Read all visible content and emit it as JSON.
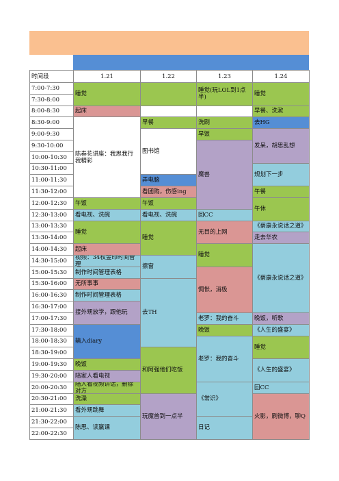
{
  "table": {
    "time_header": "时间段",
    "time_slots": [
      "7:00-7:30",
      "7:30-8:00",
      "8:00-8:30",
      "8:30-9:00",
      "9:00-9:30",
      "9:30-10:00",
      "10:00-10:30",
      "10:30-11:00",
      "11:00-11:30",
      "11:30-12:00",
      "12:00-12:30",
      "12:30-13:00",
      "13:00-13:30",
      "13:30-14:00",
      "14:00-14:30",
      "14:30-15:00",
      "15:00-15:30",
      "15:30-16:00",
      "16:00-16:30",
      "16:30-17:00",
      "17:00-17:30",
      "17:30-18:00",
      "18:00-18:30",
      "18:30-19:00",
      "19:00-19:30",
      "19:30-20:00",
      "20:00-20:30",
      "20:30-21:00",
      "21:00-21:30",
      "21:30-22:00",
      "22:00-22:30"
    ],
    "days": [
      {
        "date": "1.21",
        "cells": [
          {
            "text": "睡觉",
            "span": 2,
            "color": "green"
          },
          {
            "text": "起床",
            "span": 1,
            "color": "pink"
          },
          {
            "text": "陈春花讲座：我思我行我精彩",
            "span": 7,
            "color": "white"
          },
          {
            "text": "午饭",
            "span": 1,
            "color": "green"
          },
          {
            "text": "看电视、洗碗",
            "span": 1,
            "color": "lightblue"
          },
          {
            "text": "睡觉",
            "span": 2,
            "color": "green"
          },
          {
            "text": "起床",
            "span": 1,
            "color": "pink"
          },
          {
            "text": "视频：34权金印时间管理",
            "span": 1,
            "color": "lightblue"
          },
          {
            "text": "制作时间管理表格",
            "span": 1,
            "color": "lightblue"
          },
          {
            "text": "无所事事",
            "span": 1,
            "color": "pink"
          },
          {
            "text": "制作时间管理表格",
            "span": 1,
            "color": "lightblue"
          },
          {
            "text": "接外甥放学，跟他玩",
            "span": 2,
            "color": "purple"
          },
          {
            "text": "输入diary",
            "span": 3,
            "color": "blue"
          },
          {
            "text": "晚饭",
            "span": 1,
            "color": "green"
          },
          {
            "text": "陪家人看电视",
            "span": 1,
            "color": "purple"
          },
          {
            "text": "陪人看视频讲话，删除对方",
            "span": 1,
            "color": "green"
          },
          {
            "text": "洗澡",
            "span": 1,
            "color": "green"
          },
          {
            "text": "看外甥跳舞",
            "span": 1,
            "color": "lightblue"
          },
          {
            "text": "陈思、读赢课",
            "span": 2,
            "color": "lightblue"
          }
        ]
      },
      {
        "date": "1.22",
        "cells": [
          {
            "span": 2,
            "color": "green"
          },
          {
            "span": 1,
            "color": "white"
          },
          {
            "text": "早餐",
            "span": 1,
            "color": "green"
          },
          {
            "text": "图书馆",
            "span": 4,
            "color": "white"
          },
          {
            "text": "弄电脑",
            "span": 1,
            "color": "blue"
          },
          {
            "text": "看团购，伤感ing",
            "span": 1,
            "color": "pink"
          },
          {
            "text": "午饭",
            "span": 1,
            "color": "green"
          },
          {
            "text": "看电视、洗碗",
            "span": 1,
            "color": "lightblue"
          },
          {
            "text": "睡觉",
            "span": 3,
            "color": "green"
          },
          {
            "text": "擦窗",
            "span": 2,
            "color": "lightblue"
          },
          {
            "text": "去TH",
            "span": 6,
            "color": "lightblue"
          },
          {
            "text": "和阿强他们吃饭",
            "span": 4,
            "color": "green"
          },
          {
            "text": "玩魔兽到一点半",
            "span": 4,
            "color": "purple"
          }
        ]
      },
      {
        "date": "1.23",
        "cells": [
          {
            "text": "睡觉(玩LOL到1点半)",
            "span": 2,
            "color": "green"
          },
          {
            "span": 1,
            "color": "white"
          },
          {
            "text": "洗刷",
            "span": 1,
            "color": "green"
          },
          {
            "text": "早饭",
            "span": 1,
            "color": "green"
          },
          {
            "text": "魔兽",
            "span": 6,
            "color": "purple"
          },
          {
            "text": "回CC",
            "span": 1,
            "color": "lightblue"
          },
          {
            "text": "无目的上网",
            "span": 2,
            "color": "pink"
          },
          {
            "text": "睡觉",
            "span": 2,
            "color": "green"
          },
          {
            "text": "惆怅，消极",
            "span": 4,
            "color": "pink"
          },
          {
            "text": "老罗：我的奋斗",
            "span": 1,
            "color": "lightblue"
          },
          {
            "text": "晚饭",
            "span": 1,
            "color": "green"
          },
          {
            "text": "老罗：我的奋斗",
            "span": 4,
            "color": "lightblue"
          },
          {
            "text": "《常识》",
            "span": 3,
            "color": "lightblue"
          },
          {
            "text": "日记",
            "span": 2,
            "color": "lightblue"
          }
        ]
      },
      {
        "date": "1.24",
        "cells": [
          {
            "text": "睡觉",
            "span": 2,
            "color": "green"
          },
          {
            "text": "早餐、洗漱",
            "span": 1,
            "color": "green"
          },
          {
            "text": "去HG",
            "span": 1,
            "color": "blue"
          },
          {
            "text": "发呆，胡思乱想",
            "span": 3,
            "color": "purple"
          },
          {
            "text": "规划下一步",
            "span": 2,
            "color": "lightblue"
          },
          {
            "text": "午餐",
            "span": 1,
            "color": "green"
          },
          {
            "text": "午休",
            "span": 2,
            "color": "green"
          },
          {
            "text": "《蔡康永说话之道》",
            "span": 1,
            "color": "lightblue"
          },
          {
            "text": "走去华农",
            "span": 1,
            "color": "purple"
          },
          {
            "text": "《蔡康永说话之道》",
            "span": 6,
            "color": "lightblue"
          },
          {
            "text": "晚饭，听歌",
            "span": 1,
            "color": "purple"
          },
          {
            "text": "《人生的盛宴》",
            "span": 1,
            "color": "lightblue"
          },
          {
            "text": "睡觉",
            "span": 2,
            "color": "green"
          },
          {
            "text": "《人生的盛宴》",
            "span": 2,
            "color": "lightblue"
          },
          {
            "text": "回CC",
            "span": 1,
            "color": "lightblue"
          },
          {
            "text": "火影，刷微博，聊Q",
            "span": 4,
            "color": "pink"
          }
        ]
      }
    ]
  }
}
